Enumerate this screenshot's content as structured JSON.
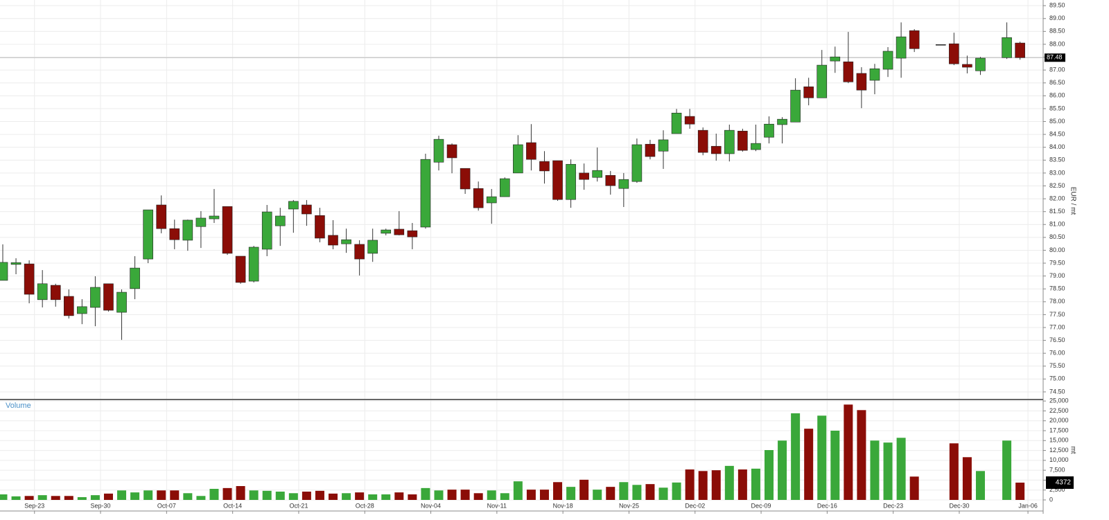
{
  "chart_data": [
    {
      "type": "candlestick",
      "categories": [
        null,
        null,
        null,
        null,
        null,
        null,
        null,
        null,
        null,
        null,
        null,
        null,
        null,
        null,
        null,
        null,
        null,
        null,
        null,
        null,
        null,
        null,
        null,
        null,
        null,
        null,
        null,
        null,
        null,
        null,
        null,
        null,
        null,
        null,
        null,
        null,
        null,
        null,
        null,
        null,
        null,
        null,
        null,
        null,
        null,
        null,
        null,
        null,
        null,
        null,
        null,
        null,
        null,
        null,
        null,
        null,
        null,
        null,
        null,
        null,
        null,
        null,
        null,
        null,
        null,
        null,
        null,
        null,
        null,
        null,
        null,
        null,
        null,
        null,
        null,
        null,
        null,
        null
      ],
      "series": [
        {
          "open": [
            78.83,
            79.45,
            79.47,
            78.08,
            78.64,
            78.21,
            77.54,
            77.78,
            78.7,
            77.59,
            78.51,
            79.66,
            81.76,
            80.84,
            80.39,
            80.92,
            81.22,
            81.7,
            79.77,
            78.8,
            80.04,
            80.95,
            81.6,
            81.76,
            81.35,
            80.58,
            80.25,
            80.23,
            79.88,
            80.66,
            80.82,
            80.76,
            80.9,
            83.42,
            84.1,
            83.18,
            82.4,
            81.84,
            82.08,
            83.0,
            84.18,
            83.45,
            83.48,
            81.97,
            83.0,
            82.83,
            82.91,
            82.4,
            82.67,
            84.12,
            83.85,
            84.53,
            85.2,
            84.66,
            84.04,
            83.75,
            84.63,
            83.91,
            84.39,
            84.88,
            84.98,
            86.35,
            85.92,
            87.35,
            87.32,
            86.87,
            86.6,
            87.03,
            87.46,
            88.53,
            null,
            87.99,
            88.02,
            87.22,
            86.97,
            null,
            87.48,
            88.05
          ],
          "high": [
            80.23,
            79.69,
            79.61,
            79.23,
            78.7,
            78.48,
            78.1,
            78.99,
            78.7,
            78.48,
            79.77,
            81.57,
            82.13,
            81.19,
            81.19,
            81.52,
            82.38,
            81.7,
            79.77,
            80.17,
            81.76,
            81.65,
            81.95,
            81.95,
            81.65,
            81.17,
            80.84,
            80.39,
            80.84,
            80.84,
            81.52,
            81.06,
            83.75,
            84.45,
            84.15,
            83.18,
            82.67,
            82.38,
            82.83,
            84.47,
            84.9,
            83.85,
            83.48,
            83.53,
            83.37,
            83.99,
            83.08,
            83.0,
            84.34,
            84.29,
            84.66,
            85.49,
            85.49,
            84.77,
            84.53,
            84.88,
            84.72,
            84.88,
            85.2,
            85.17,
            86.68,
            86.7,
            87.78,
            87.91,
            88.48,
            87.11,
            87.24,
            87.89,
            88.85,
            88.59,
            null,
            87.99,
            88.45,
            87.56,
            87.51,
            null,
            88.85,
            88.1
          ],
          "low": [
            78.83,
            79.07,
            77.94,
            77.78,
            77.81,
            77.35,
            77.13,
            77.05,
            77.62,
            76.52,
            78.1,
            79.5,
            80.66,
            80.04,
            79.98,
            80.09,
            81.06,
            79.82,
            78.7,
            78.75,
            79.77,
            80.17,
            80.68,
            80.95,
            80.31,
            80.04,
            79.9,
            79.02,
            79.55,
            80.58,
            80.58,
            80.04,
            80.84,
            83.1,
            82.99,
            82.19,
            81.54,
            81.03,
            82.08,
            83.0,
            83.1,
            82.59,
            81.92,
            81.65,
            82.35,
            82.67,
            82.16,
            81.68,
            82.62,
            83.53,
            83.16,
            84.53,
            84.72,
            83.69,
            83.48,
            83.45,
            83.83,
            83.85,
            84.15,
            84.15,
            84.98,
            85.63,
            85.92,
            86.89,
            86.49,
            85.52,
            86.06,
            86.73,
            86.7,
            87.7,
            null,
            87.99,
            87.19,
            86.87,
            86.81,
            null,
            87.43,
            87.4
          ],
          "close": [
            79.53,
            79.52,
            78.29,
            78.7,
            78.08,
            77.46,
            77.81,
            78.56,
            77.67,
            78.37,
            79.31,
            81.57,
            80.84,
            80.41,
            81.17,
            81.25,
            81.33,
            79.88,
            78.75,
            80.12,
            81.49,
            81.33,
            81.9,
            81.41,
            80.47,
            80.2,
            80.41,
            79.66,
            80.39,
            80.79,
            80.6,
            80.52,
            83.53,
            84.31,
            83.59,
            82.38,
            81.65,
            82.08,
            82.78,
            84.1,
            83.53,
            83.08,
            81.97,
            83.34,
            82.75,
            83.1,
            82.51,
            82.75,
            84.1,
            83.64,
            84.29,
            85.33,
            84.9,
            83.8,
            83.75,
            84.66,
            83.88,
            84.15,
            84.9,
            85.09,
            86.22,
            85.92,
            87.19,
            87.51,
            86.54,
            86.22,
            87.05,
            87.73,
            88.29,
            87.83,
            null,
            87.99,
            87.24,
            87.11,
            87.46,
            null,
            88.26,
            87.48
          ]
        }
      ],
      "up_color": "#3aa83a",
      "down_color": "#8b0d07",
      "xlim": [
        -0.21,
        78.75
      ],
      "xticks": [
        {
          "value": 2.4,
          "label": "Sep-23"
        },
        {
          "value": 7.4,
          "label": "Sep-30"
        },
        {
          "value": 12.4,
          "label": "Oct-07"
        },
        {
          "value": 17.4,
          "label": "Oct-14"
        },
        {
          "value": 22.4,
          "label": "Oct-21"
        },
        {
          "value": 27.4,
          "label": "Oct-28"
        },
        {
          "value": 32.4,
          "label": "Nov-04"
        },
        {
          "value": 37.4,
          "label": "Nov-11"
        },
        {
          "value": 42.4,
          "label": "Nov-18"
        },
        {
          "value": 47.4,
          "label": "Nov-25"
        },
        {
          "value": 52.4,
          "label": "Dec-02"
        },
        {
          "value": 57.4,
          "label": "Dec-09"
        },
        {
          "value": 62.4,
          "label": "Dec-16"
        },
        {
          "value": 67.4,
          "label": "Dec-23"
        },
        {
          "value": 72.4,
          "label": "Dec-30"
        },
        {
          "value": 77.6,
          "label": "Jan-06"
        }
      ],
      "ylabel": "EUR / mt",
      "ylim": [
        74.23,
        89.72
      ],
      "yticks": [
        {
          "value": 74.5,
          "label": "74.50"
        },
        {
          "value": 75,
          "label": "75.00"
        },
        {
          "value": 75.5,
          "label": "75.50"
        },
        {
          "value": 76,
          "label": "76.00"
        },
        {
          "value": 76.5,
          "label": "76.50"
        },
        {
          "value": 77,
          "label": "77.00"
        },
        {
          "value": 77.5,
          "label": "77.50"
        },
        {
          "value": 78,
          "label": "78.00"
        },
        {
          "value": 78.5,
          "label": "78.50"
        },
        {
          "value": 79,
          "label": "79.00"
        },
        {
          "value": 79.5,
          "label": "79.50"
        },
        {
          "value": 80,
          "label": "80.00"
        },
        {
          "value": 80.5,
          "label": "80.50"
        },
        {
          "value": 81,
          "label": "81.00"
        },
        {
          "value": 81.5,
          "label": "81.50"
        },
        {
          "value": 82,
          "label": "82.00"
        },
        {
          "value": 82.5,
          "label": "82.50"
        },
        {
          "value": 83,
          "label": "83.00"
        },
        {
          "value": 83.5,
          "label": "83.50"
        },
        {
          "value": 84,
          "label": "84.00"
        },
        {
          "value": 84.5,
          "label": "84.50"
        },
        {
          "value": 85,
          "label": "85.00"
        },
        {
          "value": 85.5,
          "label": "85.50"
        },
        {
          "value": 86,
          "label": "86.00"
        },
        {
          "value": 86.5,
          "label": "86.50"
        },
        {
          "value": 87,
          "label": "87.00"
        },
        {
          "value": 87.5,
          "label": "87.50"
        },
        {
          "value": 88,
          "label": "88.00"
        },
        {
          "value": 88.5,
          "label": "88.50"
        },
        {
          "value": 89,
          "label": "89.00"
        },
        {
          "value": 89.5,
          "label": "89.50"
        }
      ],
      "last_value": 87.48,
      "grid": true
    },
    {
      "type": "bar",
      "title": "Volume",
      "values": [
        1400,
        900,
        1000,
        1200,
        1000,
        1000,
        700,
        1200,
        1600,
        2400,
        1900,
        2400,
        2400,
        2400,
        1700,
        1000,
        2800,
        3000,
        3500,
        2400,
        2300,
        2100,
        1700,
        2100,
        2300,
        1600,
        1700,
        1900,
        1400,
        1400,
        1900,
        1400,
        3000,
        2400,
        2600,
        2600,
        1700,
        2400,
        1700,
        4700,
        2600,
        2600,
        4500,
        3300,
        5100,
        2600,
        3300,
        4500,
        3800,
        4000,
        3100,
        4400,
        7700,
        7300,
        7500,
        8600,
        7700,
        7900,
        12600,
        15000,
        21900,
        18000,
        21300,
        17500,
        24100,
        22700,
        15000,
        14500,
        15700,
        5900,
        null,
        null,
        14300,
        10800,
        7300,
        null,
        15000,
        4372
      ],
      "ylabel": "mt",
      "ylim": [
        0,
        25200
      ],
      "yticks": [
        0,
        {
          "value": 2500,
          "label": "2,500"
        },
        {
          "value": 5000,
          "label": "5,000"
        },
        {
          "value": 7500,
          "label": "7,500"
        },
        {
          "value": 10000,
          "label": "10,000"
        },
        {
          "value": 12500,
          "label": "12,500"
        },
        {
          "value": 15000,
          "label": "15,000"
        },
        {
          "value": 17500,
          "label": "17,500"
        },
        {
          "value": 20000,
          "label": "20,000"
        },
        {
          "value": 22500,
          "label": "22,500"
        },
        {
          "value": 25000,
          "label": "25,000"
        }
      ],
      "last_value": 4372,
      "grid": true
    }
  ]
}
